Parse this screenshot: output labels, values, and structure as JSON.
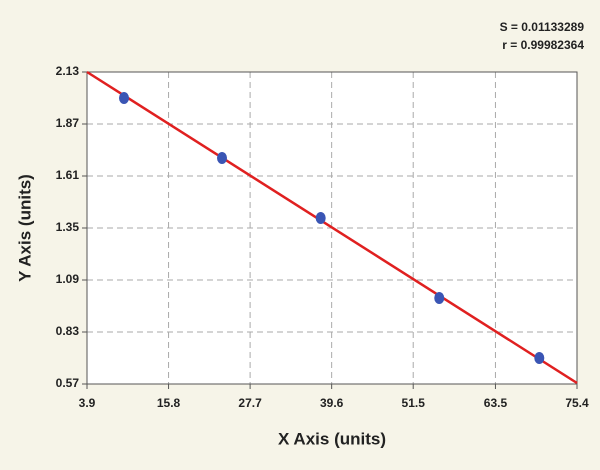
{
  "chart_data": {
    "type": "scatter",
    "annotations": [
      "S = 0.01133289",
      "r = 0.99982364"
    ],
    "x_label": "X Axis (units)",
    "y_label": "Y Axis (units)",
    "series": [
      {
        "color": "#3a55b4",
        "x": [
          9.3,
          23.6,
          38.0,
          55.3,
          69.9
        ],
        "values": [
          2.0,
          1.7,
          1.4,
          1.0,
          0.7
        ]
      }
    ],
    "fit": {
      "color": "#e02020",
      "x": [
        3.9,
        75.4
      ],
      "y": [
        2.13,
        0.575
      ]
    },
    "xlim": [
      3.9,
      75.4
    ],
    "xticks": [
      3.9,
      15.8,
      27.7,
      39.6,
      51.5,
      63.5,
      75.4
    ],
    "ylim": [
      0.57,
      2.13
    ],
    "yticks": [
      0.57,
      0.83,
      1.09,
      1.35,
      1.61,
      1.87,
      2.13
    ],
    "grid": true
  }
}
